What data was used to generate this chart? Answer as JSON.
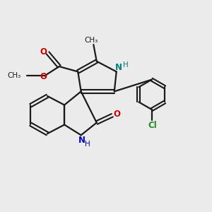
{
  "background_color": "#ebebeb",
  "bond_color": "#1a1a1a",
  "n_color": "#0000cc",
  "nh_color": "#008080",
  "o_color": "#cc0000",
  "cl_color": "#228B22",
  "figsize": [
    3.0,
    3.0
  ],
  "dpi": 100,
  "xlim": [
    0,
    10
  ],
  "ylim": [
    0,
    10
  ]
}
